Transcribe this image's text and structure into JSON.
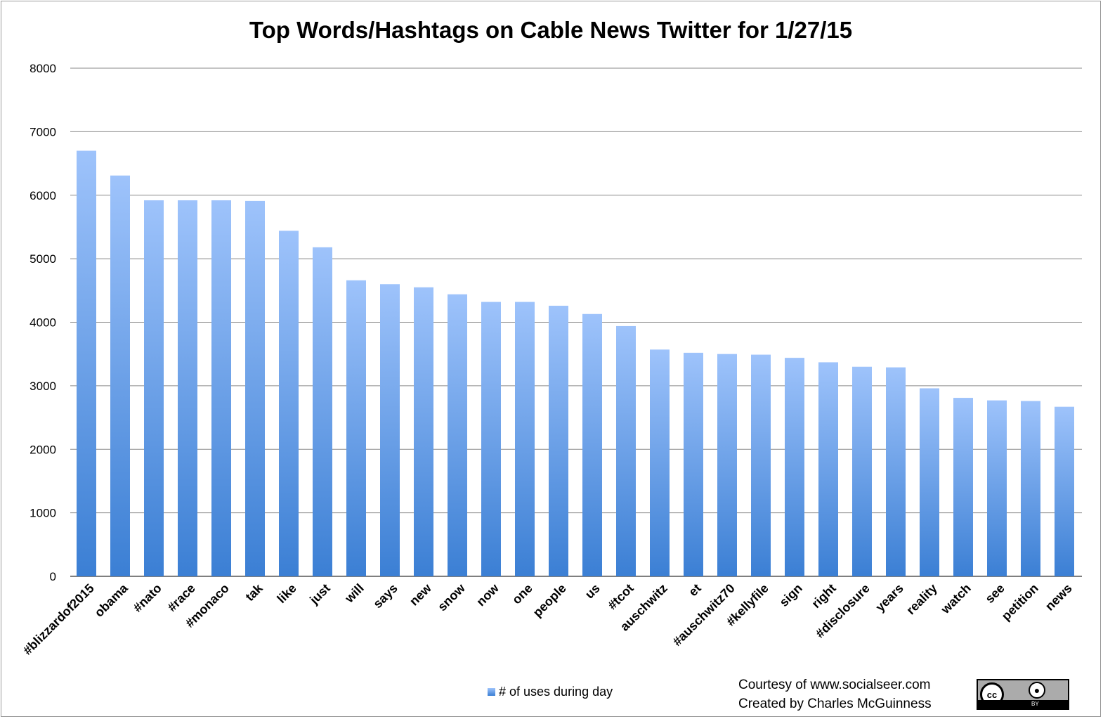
{
  "chart_data": {
    "type": "bar",
    "title": "Top Words/Hashtags on Cable News Twitter for 1/27/15",
    "categories": [
      "#blizzardof2015",
      "obama",
      "#nato",
      "#race",
      "#monaco",
      "tak",
      "like",
      "just",
      "will",
      "says",
      "new",
      "snow",
      "now",
      "one",
      "people",
      "us",
      "#tcot",
      "auschwitz",
      "et",
      "#auschwitz70",
      "#kellyfile",
      "sign",
      "right",
      "#disclosure",
      "years",
      "reality",
      "watch",
      "see",
      "petition",
      "news"
    ],
    "series": [
      {
        "name": "# of uses during day",
        "values": [
          6700,
          6310,
          5920,
          5920,
          5920,
          5910,
          5440,
          5180,
          4660,
          4600,
          4550,
          4440,
          4320,
          4320,
          4260,
          4130,
          3940,
          3570,
          3520,
          3500,
          3490,
          3440,
          3370,
          3300,
          3290,
          2960,
          2810,
          2770,
          2760,
          2670
        ]
      }
    ],
    "ylim": [
      0,
      8000
    ],
    "yticks": [
      0,
      1000,
      2000,
      3000,
      4000,
      5000,
      6000,
      7000,
      8000
    ],
    "xlabel": "",
    "ylabel": "",
    "grid": true,
    "legend_position": "bottom",
    "bar_color_top": "#9ec3fb",
    "bar_color_bottom": "#3b7fd4"
  },
  "credits": {
    "line1": "Courtesy of www.socialseer.com",
    "line2": "Created by Charles McGuinness"
  },
  "license_badge": {
    "symbol": "cc",
    "by_label": "BY"
  }
}
